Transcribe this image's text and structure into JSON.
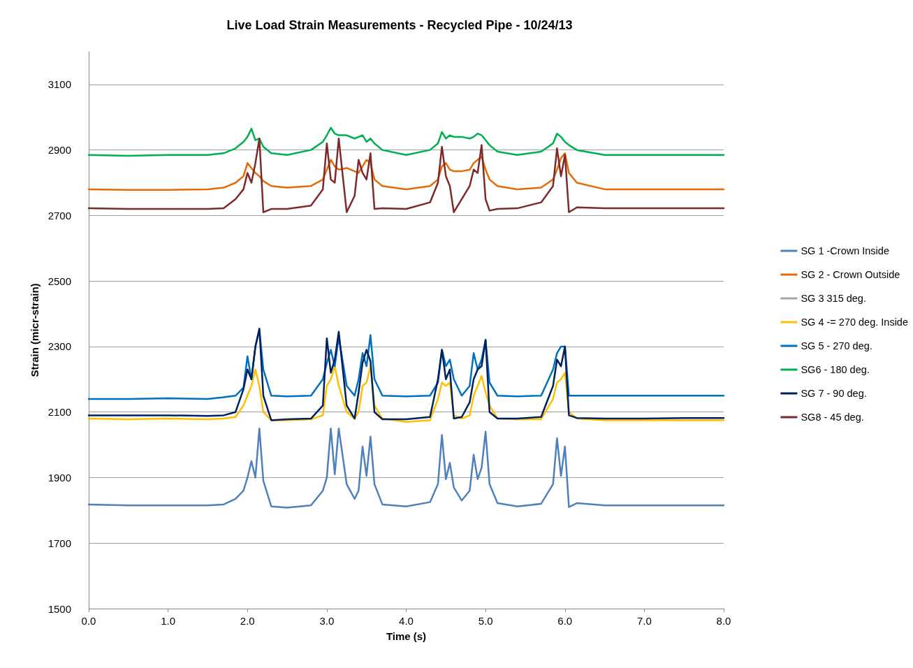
{
  "chart_data": {
    "type": "line",
    "title": "Live Load Strain Measurements - Recycled Pipe - 10/24/13",
    "xlabel": "Time (s)",
    "ylabel": "Strain (micr-strain)",
    "x": [
      0,
      0.5,
      1.0,
      1.5,
      1.7,
      1.85,
      1.95,
      2.0,
      2.05,
      2.1,
      2.15,
      2.2,
      2.3,
      2.5,
      2.8,
      2.95,
      3.0,
      3.05,
      3.1,
      3.15,
      3.25,
      3.35,
      3.4,
      3.45,
      3.5,
      3.55,
      3.6,
      3.7,
      4.0,
      4.3,
      4.4,
      4.45,
      4.5,
      4.55,
      4.6,
      4.7,
      4.8,
      4.85,
      4.9,
      4.95,
      5.0,
      5.05,
      5.15,
      5.4,
      5.7,
      5.85,
      5.9,
      5.95,
      6.0,
      6.05,
      6.15,
      6.5,
      7.0,
      7.5,
      8.0
    ],
    "series": [
      {
        "name": "SG 1 -Crown Inside",
        "color": "#4f81bd",
        "values": [
          1818,
          1815,
          1815,
          1815,
          1818,
          1835,
          1860,
          1900,
          1950,
          1900,
          2050,
          1890,
          1812,
          1808,
          1815,
          1860,
          1900,
          2050,
          1910,
          2050,
          1880,
          1835,
          1860,
          1995,
          1905,
          2025,
          1880,
          1818,
          1812,
          1825,
          1880,
          2030,
          1895,
          1945,
          1870,
          1830,
          1860,
          1970,
          1895,
          1930,
          2040,
          1880,
          1822,
          1812,
          1820,
          1880,
          2020,
          1905,
          1995,
          1810,
          1822,
          1815,
          1815,
          1815,
          1815
        ]
      },
      {
        "name": "SG 2 - Crown Outside",
        "color": "#e36c09",
        "values": [
          2780,
          2778,
          2778,
          2780,
          2785,
          2800,
          2820,
          2860,
          2845,
          2830,
          2820,
          2805,
          2790,
          2785,
          2790,
          2810,
          2840,
          2870,
          2850,
          2840,
          2845,
          2835,
          2830,
          2850,
          2870,
          2860,
          2810,
          2790,
          2780,
          2790,
          2810,
          2850,
          2860,
          2840,
          2835,
          2835,
          2840,
          2860,
          2870,
          2880,
          2840,
          2810,
          2790,
          2780,
          2785,
          2810,
          2840,
          2875,
          2890,
          2830,
          2800,
          2780,
          2780,
          2780,
          2780
        ]
      },
      {
        "name": "SG 3 315 deg.",
        "color": "#a5a5a5",
        "values": [
          null,
          null,
          null,
          null,
          null,
          null,
          null,
          null,
          null,
          null,
          null,
          null,
          null,
          null,
          null,
          null,
          null,
          null,
          null,
          null,
          null,
          null,
          null,
          null,
          null,
          null,
          null,
          null,
          null,
          null,
          null,
          null,
          null,
          null,
          null,
          null,
          null,
          null,
          null,
          null,
          null,
          null,
          null,
          null,
          null,
          null,
          null,
          null,
          null,
          null,
          null,
          null,
          null,
          null,
          null
        ]
      },
      {
        "name": "SG 4 -= 270 deg. Inside",
        "color": "#ffc000",
        "values": [
          2080,
          2078,
          2080,
          2078,
          2080,
          2085,
          2120,
          2150,
          2180,
          2230,
          2180,
          2100,
          2075,
          2075,
          2078,
          2090,
          2180,
          2200,
          2240,
          2180,
          2100,
          2080,
          2100,
          2180,
          2190,
          2240,
          2120,
          2080,
          2070,
          2075,
          2140,
          2190,
          2180,
          2190,
          2090,
          2080,
          2090,
          2150,
          2180,
          2210,
          2160,
          2120,
          2080,
          2078,
          2078,
          2140,
          2190,
          2200,
          2220,
          2100,
          2080,
          2075,
          2075,
          2075,
          2075
        ]
      },
      {
        "name": "SG 5 - 270 deg.",
        "color": "#0070c0",
        "values": [
          2140,
          2140,
          2142,
          2140,
          2145,
          2150,
          2175,
          2270,
          2200,
          2300,
          2350,
          2230,
          2150,
          2148,
          2150,
          2200,
          2250,
          2290,
          2240,
          2330,
          2180,
          2150,
          2200,
          2280,
          2240,
          2335,
          2200,
          2150,
          2148,
          2150,
          2190,
          2290,
          2240,
          2260,
          2200,
          2150,
          2180,
          2280,
          2230,
          2260,
          2320,
          2190,
          2150,
          2148,
          2150,
          2230,
          2280,
          2300,
          2300,
          2150,
          2150,
          2150,
          2150,
          2150,
          2150
        ]
      },
      {
        "name": "SG6 - 180 deg.",
        "color": "#00b050",
        "values": [
          2885,
          2882,
          2885,
          2885,
          2890,
          2905,
          2925,
          2940,
          2965,
          2930,
          2935,
          2910,
          2890,
          2885,
          2900,
          2925,
          2945,
          2968,
          2950,
          2945,
          2945,
          2935,
          2940,
          2945,
          2925,
          2935,
          2920,
          2900,
          2885,
          2900,
          2920,
          2955,
          2935,
          2945,
          2940,
          2940,
          2935,
          2940,
          2950,
          2945,
          2930,
          2915,
          2895,
          2885,
          2895,
          2920,
          2950,
          2940,
          2925,
          2915,
          2900,
          2885,
          2885,
          2885,
          2885
        ]
      },
      {
        "name": "SG 7 - 90 deg.",
        "color": "#002060",
        "values": [
          2090,
          2090,
          2090,
          2088,
          2090,
          2100,
          2170,
          2230,
          2200,
          2300,
          2355,
          2150,
          2075,
          2078,
          2080,
          2120,
          2325,
          2220,
          2260,
          2345,
          2120,
          2080,
          2160,
          2250,
          2290,
          2255,
          2100,
          2078,
          2078,
          2085,
          2200,
          2290,
          2200,
          2230,
          2080,
          2085,
          2130,
          2200,
          2230,
          2240,
          2320,
          2100,
          2080,
          2080,
          2085,
          2180,
          2260,
          2240,
          2300,
          2090,
          2082,
          2080,
          2080,
          2082,
          2082
        ]
      },
      {
        "name": "SG8 - 45 deg.",
        "color": "#7f2a2a",
        "values": [
          2722,
          2720,
          2720,
          2720,
          2722,
          2750,
          2780,
          2830,
          2800,
          2860,
          2935,
          2710,
          2720,
          2720,
          2730,
          2780,
          2920,
          2810,
          2800,
          2935,
          2710,
          2760,
          2870,
          2830,
          2810,
          2890,
          2720,
          2722,
          2720,
          2740,
          2800,
          2910,
          2820,
          2790,
          2710,
          2750,
          2790,
          2840,
          2830,
          2915,
          2750,
          2715,
          2720,
          2722,
          2740,
          2790,
          2905,
          2820,
          2885,
          2710,
          2725,
          2722,
          2722,
          2722,
          2722
        ]
      }
    ],
    "xlim": [
      0,
      8
    ],
    "xticks": [
      {
        "value": 0,
        "label": "0.0"
      },
      {
        "value": 1,
        "label": "1.0"
      },
      {
        "value": 2,
        "label": "2.0"
      },
      {
        "value": 3,
        "label": "3.0"
      },
      {
        "value": 4,
        "label": "4.0"
      },
      {
        "value": 5,
        "label": "5.0"
      },
      {
        "value": 6,
        "label": "6.0"
      },
      {
        "value": 7,
        "label": "7.0"
      },
      {
        "value": 8,
        "label": "8.0"
      }
    ],
    "ylim": [
      1500,
      3200
    ],
    "yticks": [
      1500,
      1700,
      1900,
      2100,
      2300,
      2500,
      2700,
      2900,
      3100
    ],
    "grid": "y",
    "legend": "right",
    "marker": "none",
    "line_style": "solid"
  }
}
